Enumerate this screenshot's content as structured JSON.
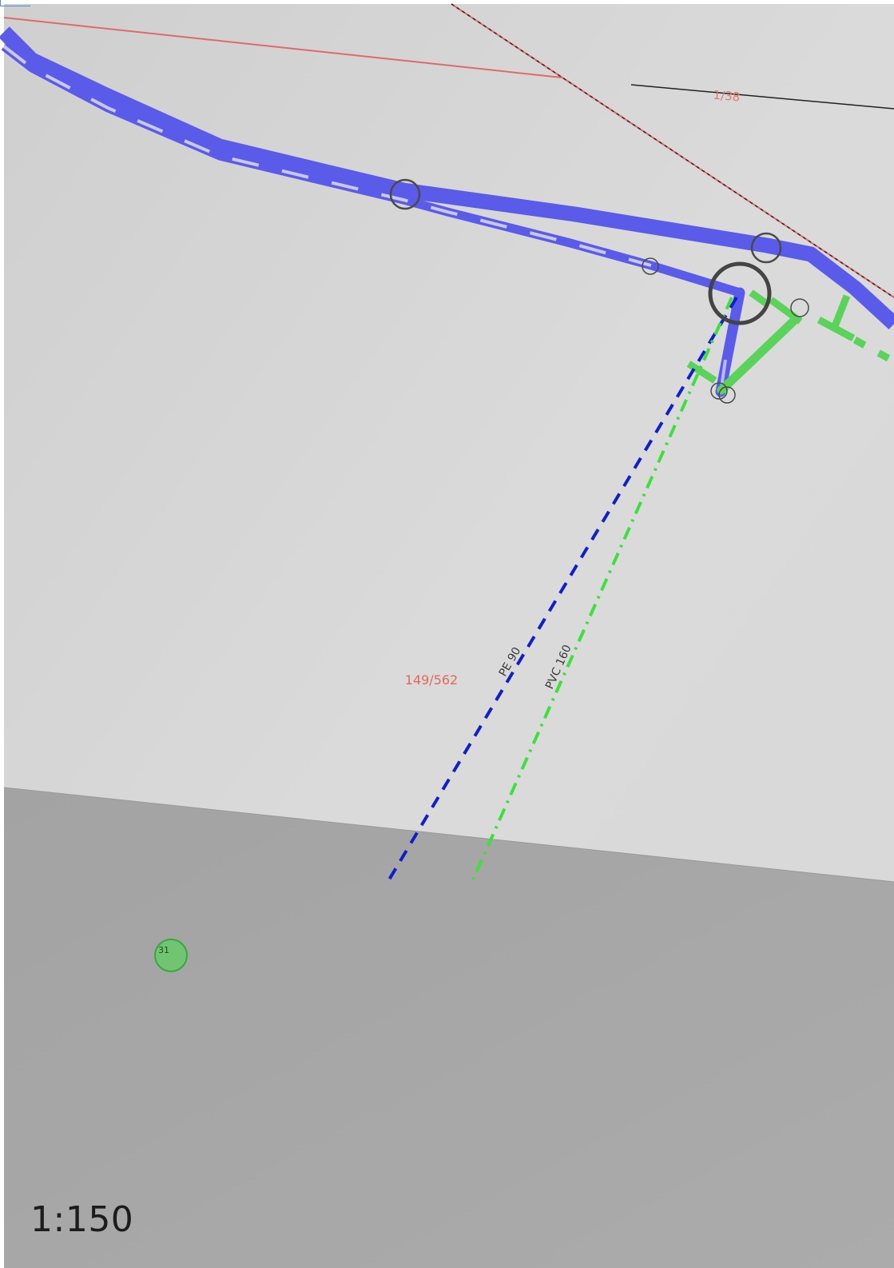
{
  "map": {
    "parcels": {
      "upper_parcel_label": "1/38",
      "main_parcel_label": "149/562"
    },
    "utilities": {
      "water_pipe_label": "PE 90",
      "sewer_pipe_label": "PVC 160"
    },
    "markers": {
      "point_marker_label": "31"
    },
    "scale": "1:150",
    "colors": {
      "gas_main": "#5b5bea",
      "water_pipe": "#1020c8",
      "sewer_pipe": "#3ee03e",
      "sewer_main": "#5ad35a",
      "parcel_border": "#e06a6a",
      "road_fill": "#a8a8a8",
      "land_fill": "#d6d6d6"
    }
  }
}
